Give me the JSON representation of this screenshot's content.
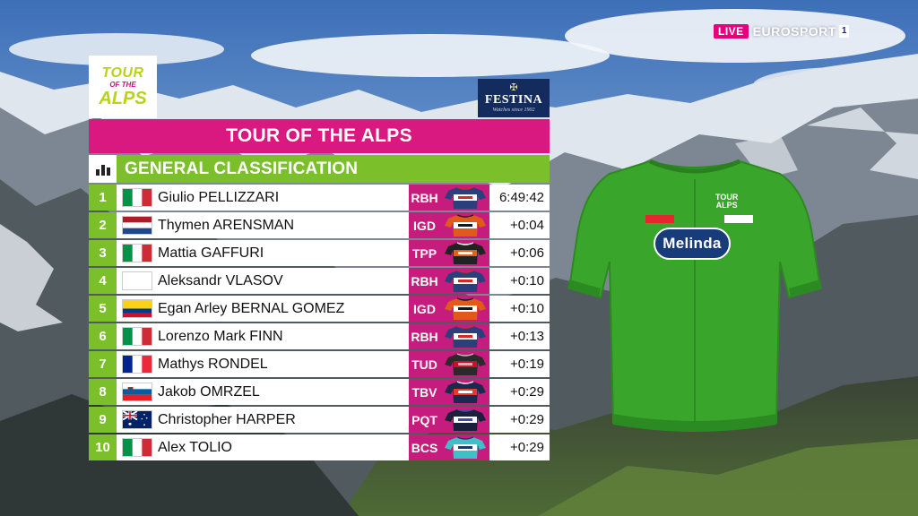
{
  "broadcast": {
    "live_label": "LIVE",
    "channel_name": "EUROSPORT",
    "channel_number": "1"
  },
  "tour_logo": {
    "line1": "TOUR",
    "line2": "OF THE",
    "line3": "ALPS"
  },
  "sponsor": {
    "name": "FESTINA",
    "tagline": "Watches since 1902"
  },
  "title": "TOUR OF THE ALPS",
  "subtitle": "GENERAL CLASSIFICATION",
  "jersey": {
    "sponsor": "Melinda",
    "chest_text_line1": "TOUR",
    "chest_text_line2": "ALPS",
    "color": "#3aa52b"
  },
  "colors": {
    "magenta": "#d9197f",
    "green": "#7bbf2a",
    "team_bg": "#c61c7d"
  },
  "standings": [
    {
      "rank": "1",
      "flag": "italy",
      "name": "Giulio PELLIZZARI",
      "team": "RBH",
      "kit": "redbull",
      "time": "6:49:42"
    },
    {
      "rank": "2",
      "flag": "netherlands",
      "name": "Thymen ARENSMAN",
      "team": "IGD",
      "kit": "ineos",
      "time": "+0:04"
    },
    {
      "rank": "3",
      "flag": "italy",
      "name": "Mattia GAFFURI",
      "team": "TPP",
      "kit": "picnic",
      "time": "+0:06"
    },
    {
      "rank": "4",
      "flag": "neutral",
      "name": "Aleksandr VLASOV",
      "team": "RBH",
      "kit": "redbull",
      "time": "+0:10"
    },
    {
      "rank": "5",
      "flag": "colombia",
      "name": "Egan Arley BERNAL GOMEZ",
      "team": "IGD",
      "kit": "ineos",
      "time": "+0:10"
    },
    {
      "rank": "6",
      "flag": "italy",
      "name": "Lorenzo Mark FINN",
      "team": "RBH",
      "kit": "redbull",
      "time": "+0:13"
    },
    {
      "rank": "7",
      "flag": "france",
      "name": "Mathys RONDEL",
      "team": "TUD",
      "kit": "tudor",
      "time": "+0:19"
    },
    {
      "rank": "8",
      "flag": "slovenia",
      "name": "Jakob OMRZEL",
      "team": "TBV",
      "kit": "bahrain",
      "time": "+0:29"
    },
    {
      "rank": "9",
      "flag": "australia",
      "name": "Christopher HARPER",
      "team": "PQT",
      "kit": "pinarello",
      "time": "+0:29"
    },
    {
      "rank": "10",
      "flag": "italy",
      "name": "Alex TOLIO",
      "team": "BCS",
      "kit": "bardiani",
      "time": "+0:29"
    }
  ]
}
